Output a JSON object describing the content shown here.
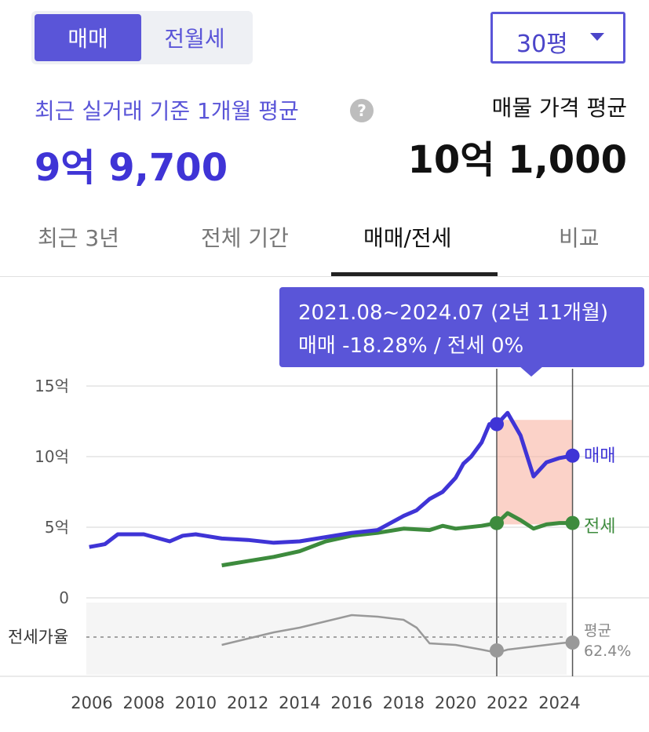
{
  "deal_toggle": {
    "options": [
      "매매",
      "전월세"
    ],
    "selected": "매매"
  },
  "size_selector": {
    "value": "30평"
  },
  "summary": {
    "recent_label": "최근 실거래 기준 1개월 평균",
    "recent_price": "9억 9,700",
    "listing_label": "매물 가격 평균",
    "listing_price": "10억 1,000"
  },
  "tabs": [
    {
      "label": "최근 3년"
    },
    {
      "label": "전체 기간"
    },
    {
      "label": "매매/전세"
    },
    {
      "label": "비교"
    }
  ],
  "active_tab": "매매/전세",
  "tooltip": {
    "period": "2021.08~2024.07 (2년 11개월)",
    "change": "매매 -18.28%  /  전세 0%"
  },
  "colors": {
    "accent": "#5a55d8",
    "sale": "#3f34d6",
    "lease": "#3d8b3d",
    "ratio": "#999999",
    "highlight": "#f8b4a4"
  },
  "chart_data": {
    "type": "line",
    "y_tick_labels": [
      "15억",
      "10억",
      "5억",
      "0"
    ],
    "ylim": [
      0,
      15
    ],
    "x_tick_labels": [
      "2006",
      "2008",
      "2010",
      "2012",
      "2014",
      "2016",
      "2018",
      "2020",
      "2022",
      "2024"
    ],
    "ratio_label": "전세가율",
    "series": [
      {
        "name": "매매",
        "x": [
          2005.9,
          2006.5,
          2007.0,
          2008.0,
          2009.0,
          2009.5,
          2010.0,
          2011.0,
          2012.0,
          2013.0,
          2014.0,
          2015.0,
          2016.0,
          2017.0,
          2017.5,
          2018.0,
          2018.5,
          2019.0,
          2019.5,
          2020.0,
          2020.3,
          2020.6,
          2021.0,
          2021.3,
          2021.6,
          2022.0,
          2022.5,
          2023.0,
          2023.5,
          2024.0,
          2024.6
        ],
        "values": [
          3.6,
          3.8,
          4.5,
          4.5,
          4.0,
          4.4,
          4.5,
          4.2,
          4.1,
          3.9,
          4.0,
          4.3,
          4.6,
          4.8,
          5.3,
          5.8,
          6.2,
          7.0,
          7.5,
          8.5,
          9.5,
          10.0,
          11.0,
          12.3,
          12.3,
          13.1,
          11.5,
          8.6,
          9.6,
          9.9,
          10.1
        ]
      },
      {
        "name": "전세",
        "x": [
          2011.0,
          2012.0,
          2013.0,
          2014.0,
          2015.0,
          2016.0,
          2017.0,
          2018.0,
          2019.0,
          2019.5,
          2020.0,
          2021.0,
          2021.6,
          2022.0,
          2022.5,
          2023.0,
          2023.5,
          2024.0,
          2024.6
        ],
        "values": [
          2.3,
          2.6,
          2.9,
          3.3,
          4.0,
          4.4,
          4.6,
          4.9,
          4.8,
          5.1,
          4.9,
          5.1,
          5.3,
          6.0,
          5.5,
          4.9,
          5.2,
          5.3,
          5.3
        ]
      }
    ],
    "ratio_series": {
      "x": [
        2011.0,
        2012.0,
        2013.0,
        2014.0,
        2015.0,
        2016.0,
        2017.0,
        2018.0,
        2018.5,
        2019.0,
        2020.0,
        2021.0,
        2021.6,
        2022.0,
        2023.0,
        2024.0,
        2024.6
      ]
    },
    "highlight_range": [
      "2021.08",
      "2024.07"
    ],
    "average": {
      "label": "평균",
      "value": "62.4%"
    },
    "end_labels": {
      "sale": "매매",
      "lease": "전세"
    }
  }
}
